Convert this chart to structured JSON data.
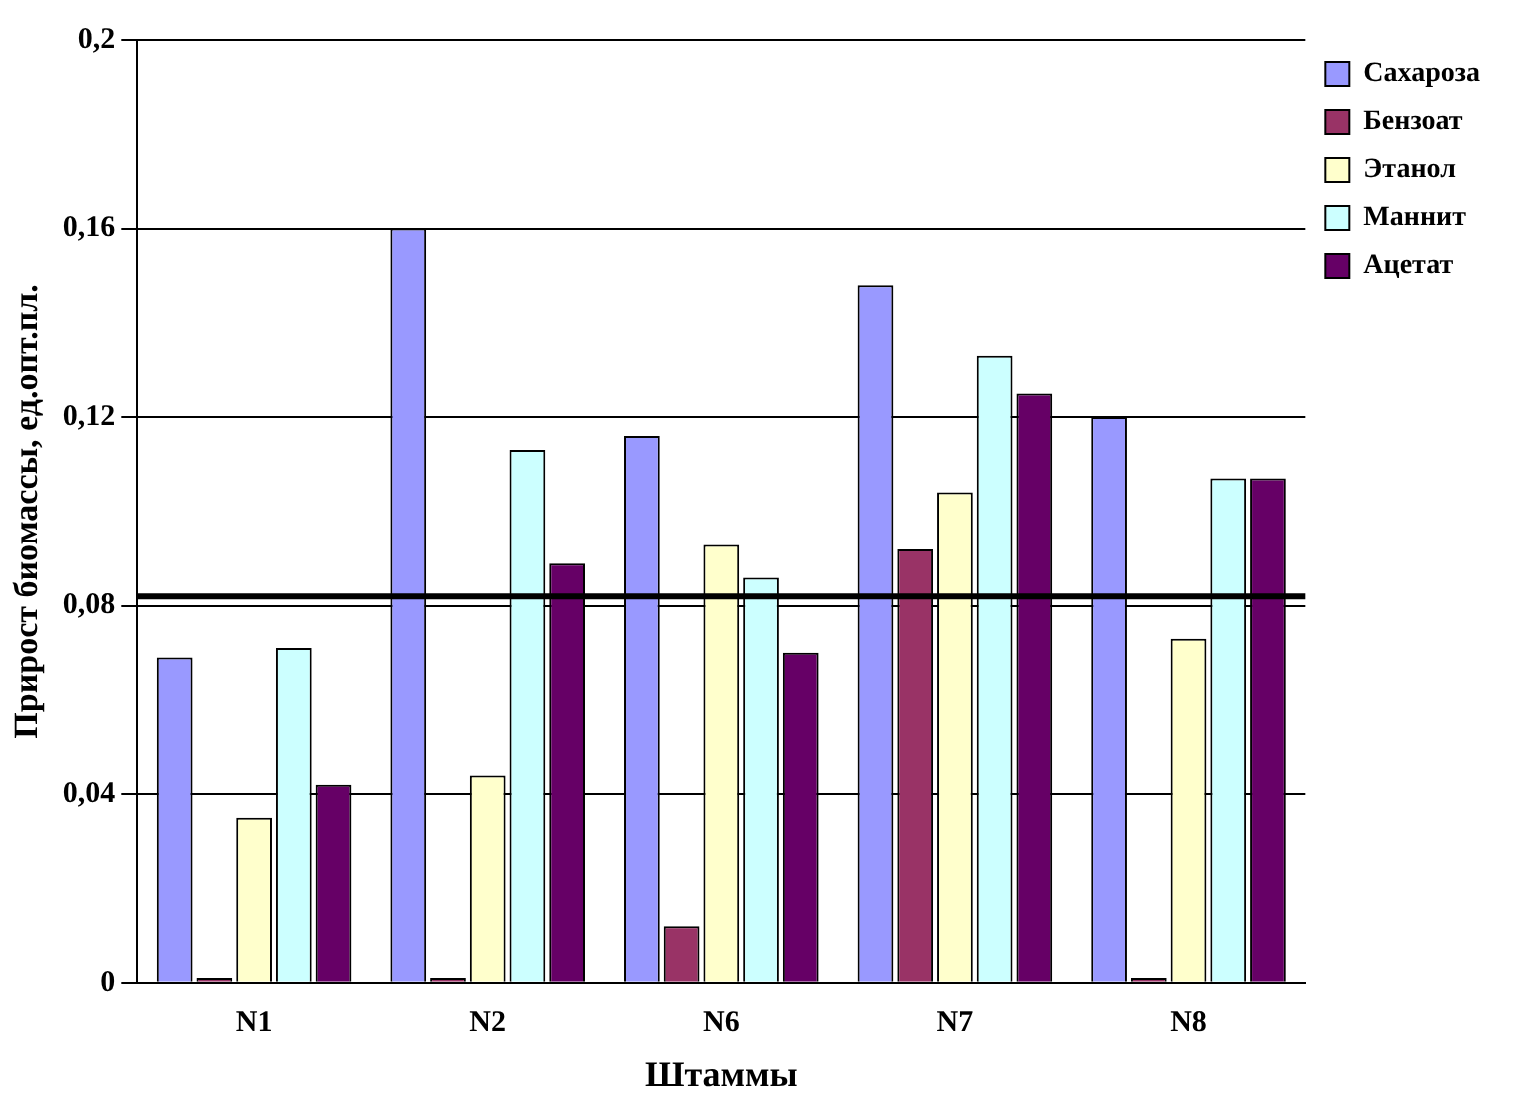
{
  "chart_data": {
    "type": "bar",
    "xlabel": "Штаммы",
    "ylabel": "Прирост биомассы, ед.опт.пл.",
    "categories": [
      "N1",
      "N2",
      "N6",
      "N7",
      "N8"
    ],
    "series": [
      {
        "name": "Сахароза",
        "color": "#9999ff",
        "values": [
          0.069,
          0.16,
          0.116,
          0.148,
          0.12
        ]
      },
      {
        "name": "Бензоат",
        "color": "#993366",
        "values": [
          0.001,
          0.001,
          0.012,
          0.092,
          0.001
        ]
      },
      {
        "name": "Этанол",
        "color": "#ffffcc",
        "values": [
          0.035,
          0.044,
          0.093,
          0.104,
          0.073
        ]
      },
      {
        "name": "Маннит",
        "color": "#ccffff",
        "values": [
          0.071,
          0.113,
          0.086,
          0.133,
          0.107
        ]
      },
      {
        "name": "Ацетат",
        "color": "#660066",
        "values": [
          0.042,
          0.089,
          0.07,
          0.125,
          0.107
        ]
      }
    ],
    "ylim": [
      0,
      0.2
    ],
    "yticks": [
      {
        "value": 0,
        "label": "0"
      },
      {
        "value": 0.04,
        "label": "0,04"
      },
      {
        "value": 0.08,
        "label": "0,08"
      },
      {
        "value": 0.12,
        "label": "0,12"
      },
      {
        "value": 0.16,
        "label": "0,16"
      },
      {
        "value": 0.2,
        "label": "0,2"
      }
    ],
    "grid": "y",
    "legend": "top right",
    "ref_lines": [
      {
        "axis": "y",
        "value": 0.082,
        "color": "#000000"
      }
    ]
  }
}
